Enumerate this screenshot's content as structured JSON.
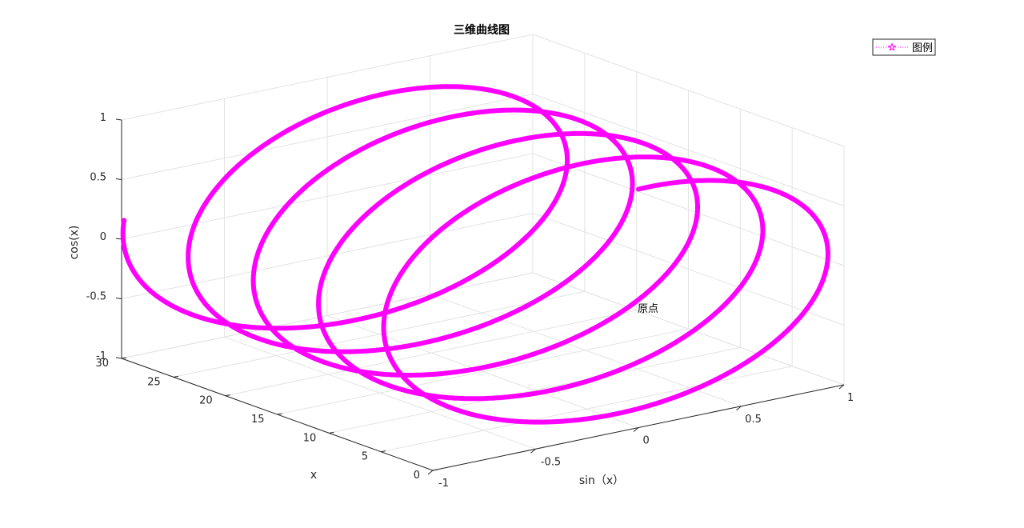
{
  "chart_data": {
    "type": "line",
    "title": "三维曲线图",
    "xlabel": "sin（x）",
    "ylabel": "x",
    "zlabel": "cos(x)",
    "xlim": [
      -1,
      1
    ],
    "ylim": [
      0,
      30
    ],
    "zlim": [
      -1,
      1
    ],
    "xticks": [
      "-1",
      "-0.5",
      "0",
      "0.5",
      "1"
    ],
    "yticks": [
      "0",
      "5",
      "10",
      "15",
      "20",
      "25",
      "30"
    ],
    "zticks": [
      "-1",
      "-0.5",
      "0",
      "0.5",
      "1"
    ],
    "grid": true,
    "legend_position": "top-right",
    "series": [
      {
        "name": "图例",
        "color": "#ff00ff",
        "line_style": "dotted",
        "marker": "pentagram",
        "x_expr": "sin(t)",
        "y_expr": "t",
        "z_expr": "cos(t)",
        "t_range": [
          0,
          30
        ]
      }
    ],
    "annotations": [
      {
        "text": "原点",
        "at": [
          0,
          0,
          0
        ]
      }
    ]
  }
}
